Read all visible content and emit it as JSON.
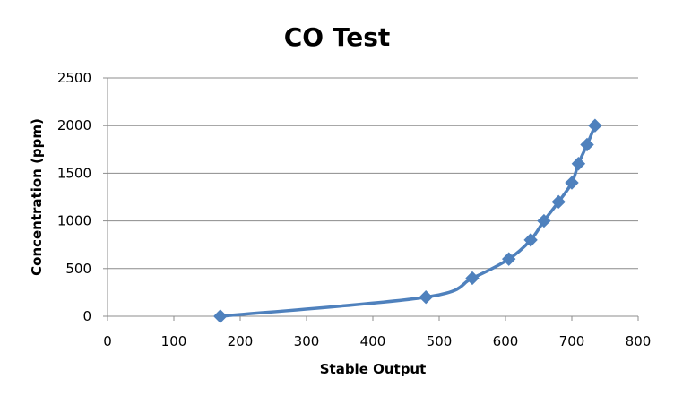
{
  "chart_data": {
    "type": "scatter",
    "title": "CO Test",
    "xlabel": "Stable Output",
    "ylabel": "Concentration (ppm)",
    "xlim": [
      0,
      800
    ],
    "ylim": [
      0,
      2500
    ],
    "xticks": [
      0,
      100,
      200,
      300,
      400,
      500,
      600,
      700,
      800
    ],
    "yticks": [
      0,
      500,
      1000,
      1500,
      2000,
      2500
    ],
    "grid": "horizontal",
    "legend": "none",
    "smoothed_line": true,
    "series": [
      {
        "color": "#4f81bd",
        "marker": "diamond",
        "points": [
          {
            "x": 170,
            "y": 0
          },
          {
            "x": 480,
            "y": 200
          },
          {
            "x": 550,
            "y": 400
          },
          {
            "x": 605,
            "y": 600
          },
          {
            "x": 638,
            "y": 800
          },
          {
            "x": 658,
            "y": 1000
          },
          {
            "x": 680,
            "y": 1200
          },
          {
            "x": 700,
            "y": 1400
          },
          {
            "x": 710,
            "y": 1600
          },
          {
            "x": 723,
            "y": 1800
          },
          {
            "x": 735,
            "y": 2000
          }
        ]
      }
    ]
  }
}
